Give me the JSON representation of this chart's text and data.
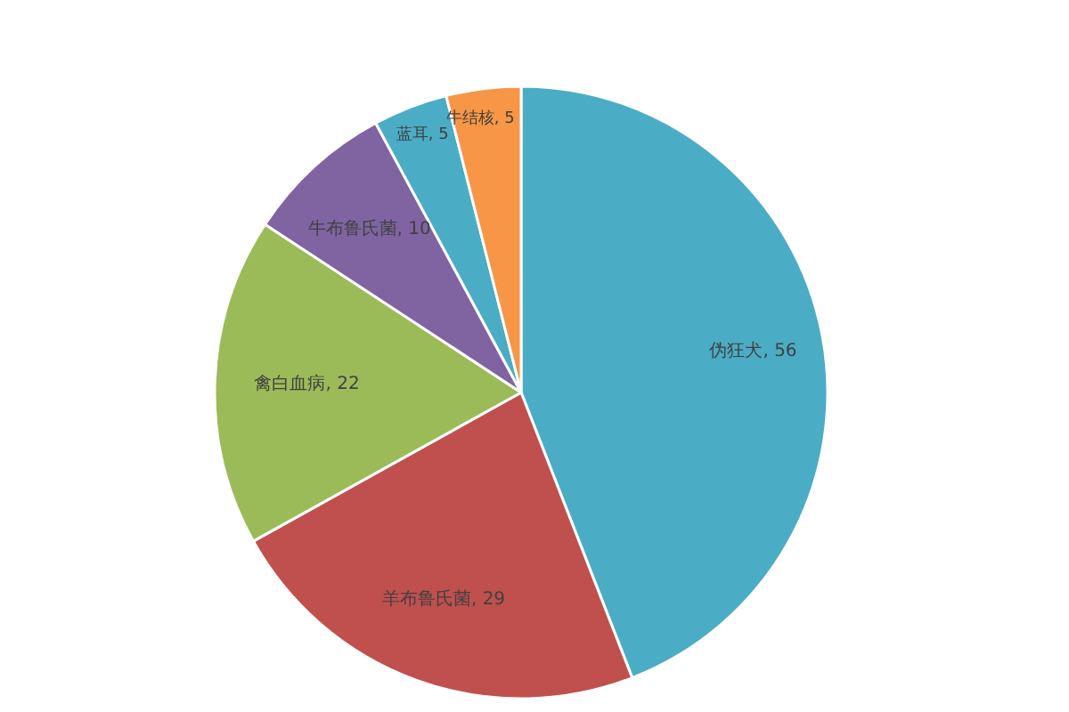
{
  "chart_data": {
    "type": "pie",
    "categories": [
      "伪狂犬",
      "羊布鲁氏菌",
      "禽白血病",
      "牛布鲁氏菌",
      "蓝耳",
      "牛结核"
    ],
    "values": [
      56,
      29,
      22,
      10,
      5,
      5
    ],
    "colors": [
      "#4bacc6",
      "#c0504d",
      "#9bbb59",
      "#8064a2",
      "#4bacc6",
      "#f79646"
    ],
    "value_labels": [
      ", 56",
      ", 29",
      ", 22",
      ", 10",
      ", 5",
      ", 5"
    ],
    "legend": false
  }
}
